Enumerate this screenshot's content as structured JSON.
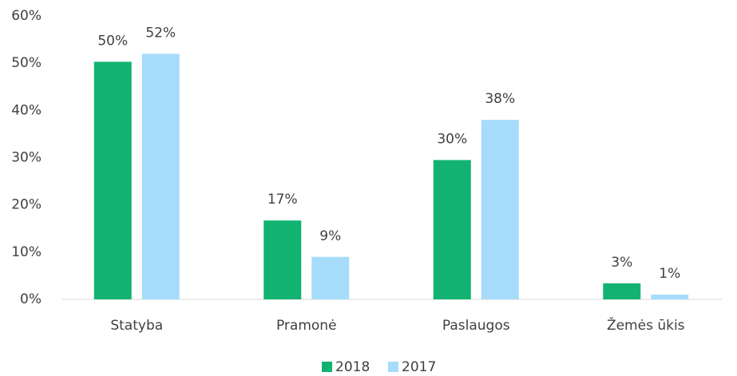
{
  "chart_data": {
    "type": "bar",
    "categories": [
      "Statyba",
      "Pramonė",
      "Paslaugos",
      "Žemės ūkis"
    ],
    "series": [
      {
        "name": "2018",
        "color": "#12b370",
        "values": [
          50.3,
          16.7,
          29.5,
          3.4
        ],
        "value_labels": [
          "50%",
          "17%",
          "30%",
          "3%"
        ]
      },
      {
        "name": "2017",
        "color": "#a6dcfa",
        "values": [
          52,
          9,
          38,
          1
        ],
        "value_labels": [
          "52%",
          "9%",
          "38%",
          "1%"
        ]
      }
    ],
    "ylim": [
      0,
      60
    ],
    "yticks": [
      {
        "value": 0,
        "label": "0%"
      },
      {
        "value": 10,
        "label": "10%"
      },
      {
        "value": 20,
        "label": "20%"
      },
      {
        "value": 30,
        "label": "30%"
      },
      {
        "value": 40,
        "label": "40%"
      },
      {
        "value": 50,
        "label": "50%"
      },
      {
        "value": 60,
        "label": "60%"
      }
    ],
    "grid": false,
    "legend": "bottom"
  }
}
